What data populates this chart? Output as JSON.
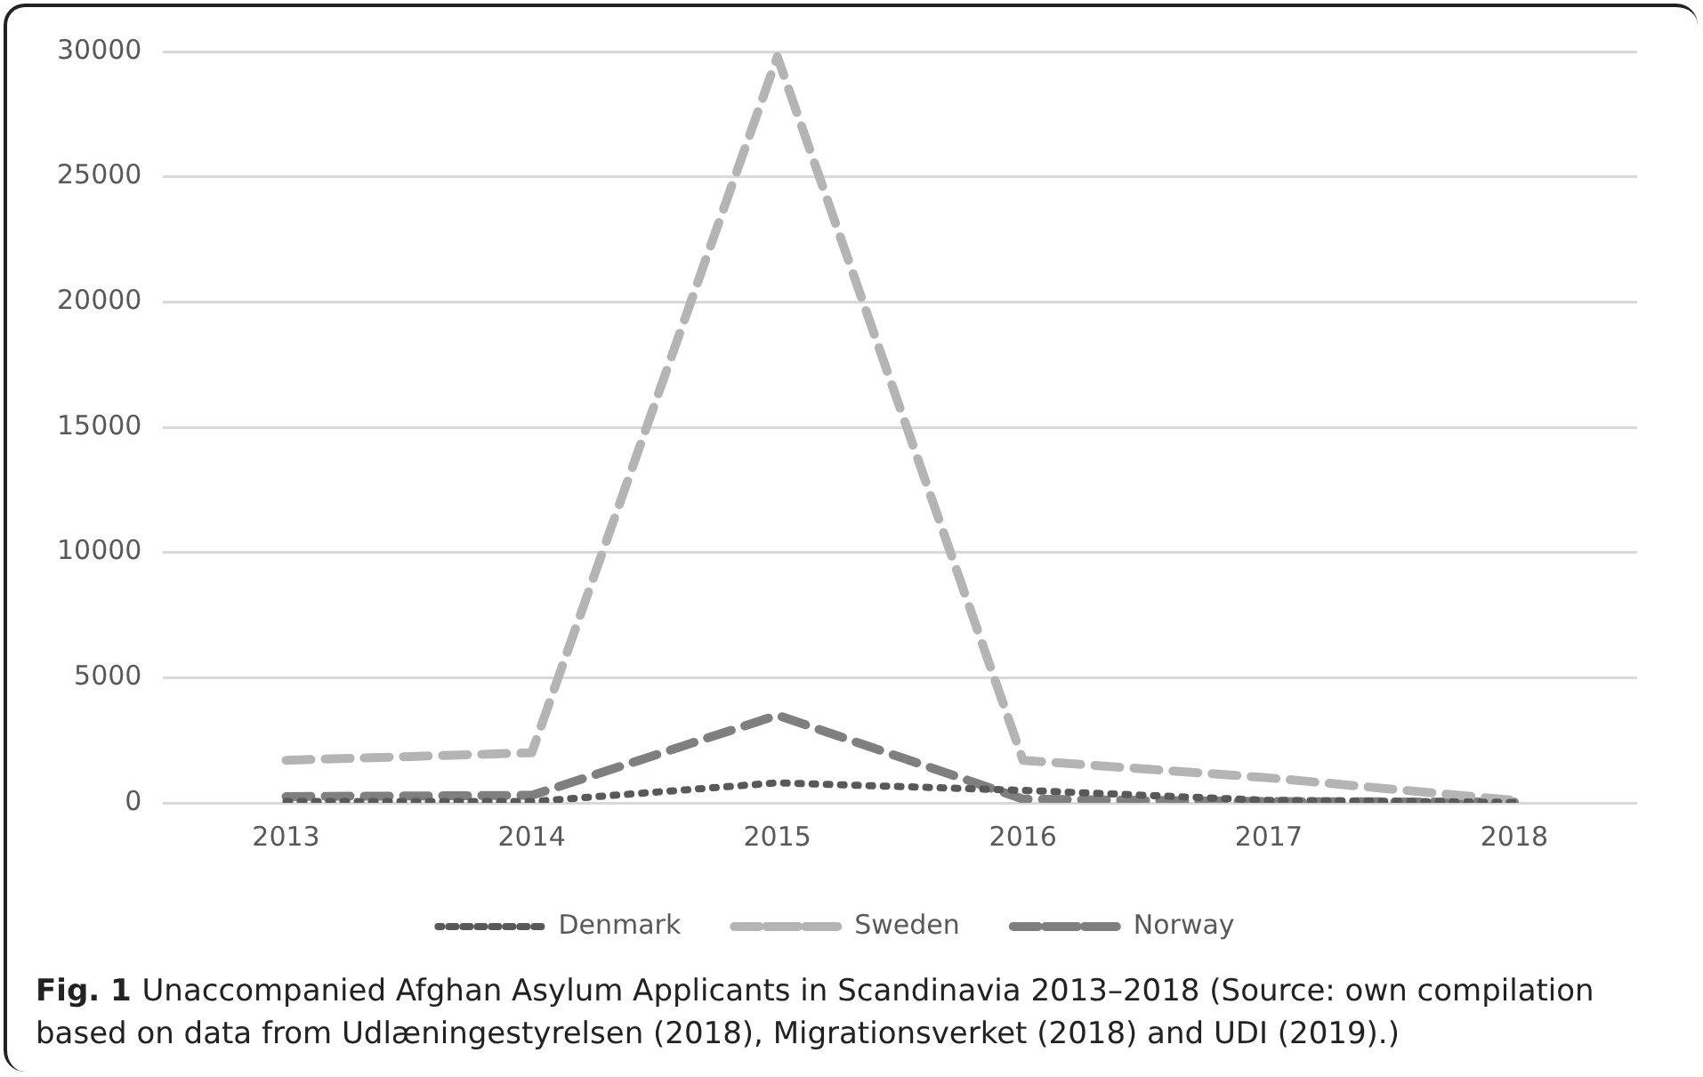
{
  "chart_data": {
    "type": "line",
    "categories": [
      "2013",
      "2014",
      "2015",
      "2016",
      "2017",
      "2018"
    ],
    "series": [
      {
        "name": "Denmark",
        "color": "#595959",
        "line_style": "dotted",
        "values": [
          50,
          50,
          800,
          500,
          100,
          20
        ]
      },
      {
        "name": "Sweden",
        "color": "#b4b4b4",
        "line_style": "dashed",
        "values": [
          1700,
          2000,
          29800,
          1700,
          1000,
          100
        ]
      },
      {
        "name": "Norway",
        "color": "#7f7f7f",
        "line_style": "dashed",
        "values": [
          250,
          300,
          3500,
          150,
          50,
          30
        ]
      }
    ],
    "ylim": [
      0,
      30000
    ],
    "yticks": [
      0,
      5000,
      10000,
      15000,
      20000,
      25000,
      30000
    ],
    "grid": "y",
    "legend": "bottom",
    "marker": "none",
    "annotations": [
      "Fig. 1",
      "Unaccompanied Afghan Asylum Applicants in Scandinavia 2013–2018 (Source: own compilation based on data from Udlæningestyrelsen (2018), Migrationsverket (2018) and UDI (2019).)"
    ]
  }
}
